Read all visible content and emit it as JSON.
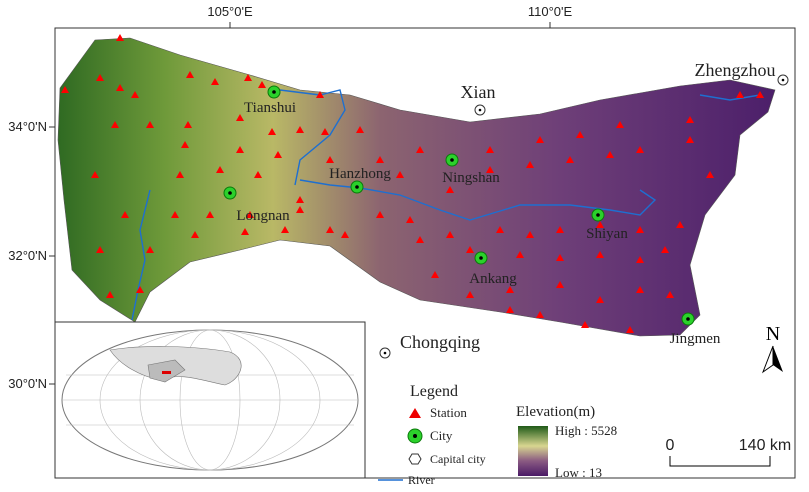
{
  "axes": {
    "x_labels": [
      "105°0'E",
      "110°0'E"
    ],
    "y_labels": [
      "34°0'N",
      "32°0'N",
      "30°0'N"
    ]
  },
  "cities": [
    {
      "label": "Tianshui",
      "kind": "city"
    },
    {
      "label": "Xian",
      "kind": "capital"
    },
    {
      "label": "Zhengzhou",
      "kind": "capital"
    },
    {
      "label": "Hanzhong",
      "kind": "city"
    },
    {
      "label": "Ningshan",
      "kind": "city"
    },
    {
      "label": "Longnan",
      "kind": "city"
    },
    {
      "label": "Shiyan",
      "kind": "city"
    },
    {
      "label": "Ankang",
      "kind": "city"
    },
    {
      "label": "Jingmen",
      "kind": "city"
    },
    {
      "label": "Chongqing",
      "kind": "capital"
    }
  ],
  "legend": {
    "title": "Legend",
    "items": [
      "Station",
      "City",
      "Capital city",
      "River"
    ]
  },
  "elevation": {
    "title": "Elevation(m)",
    "high": "High : 5528",
    "low": "Low : 13"
  },
  "north": "N",
  "scale": {
    "start": "0",
    "end": "140 km"
  }
}
